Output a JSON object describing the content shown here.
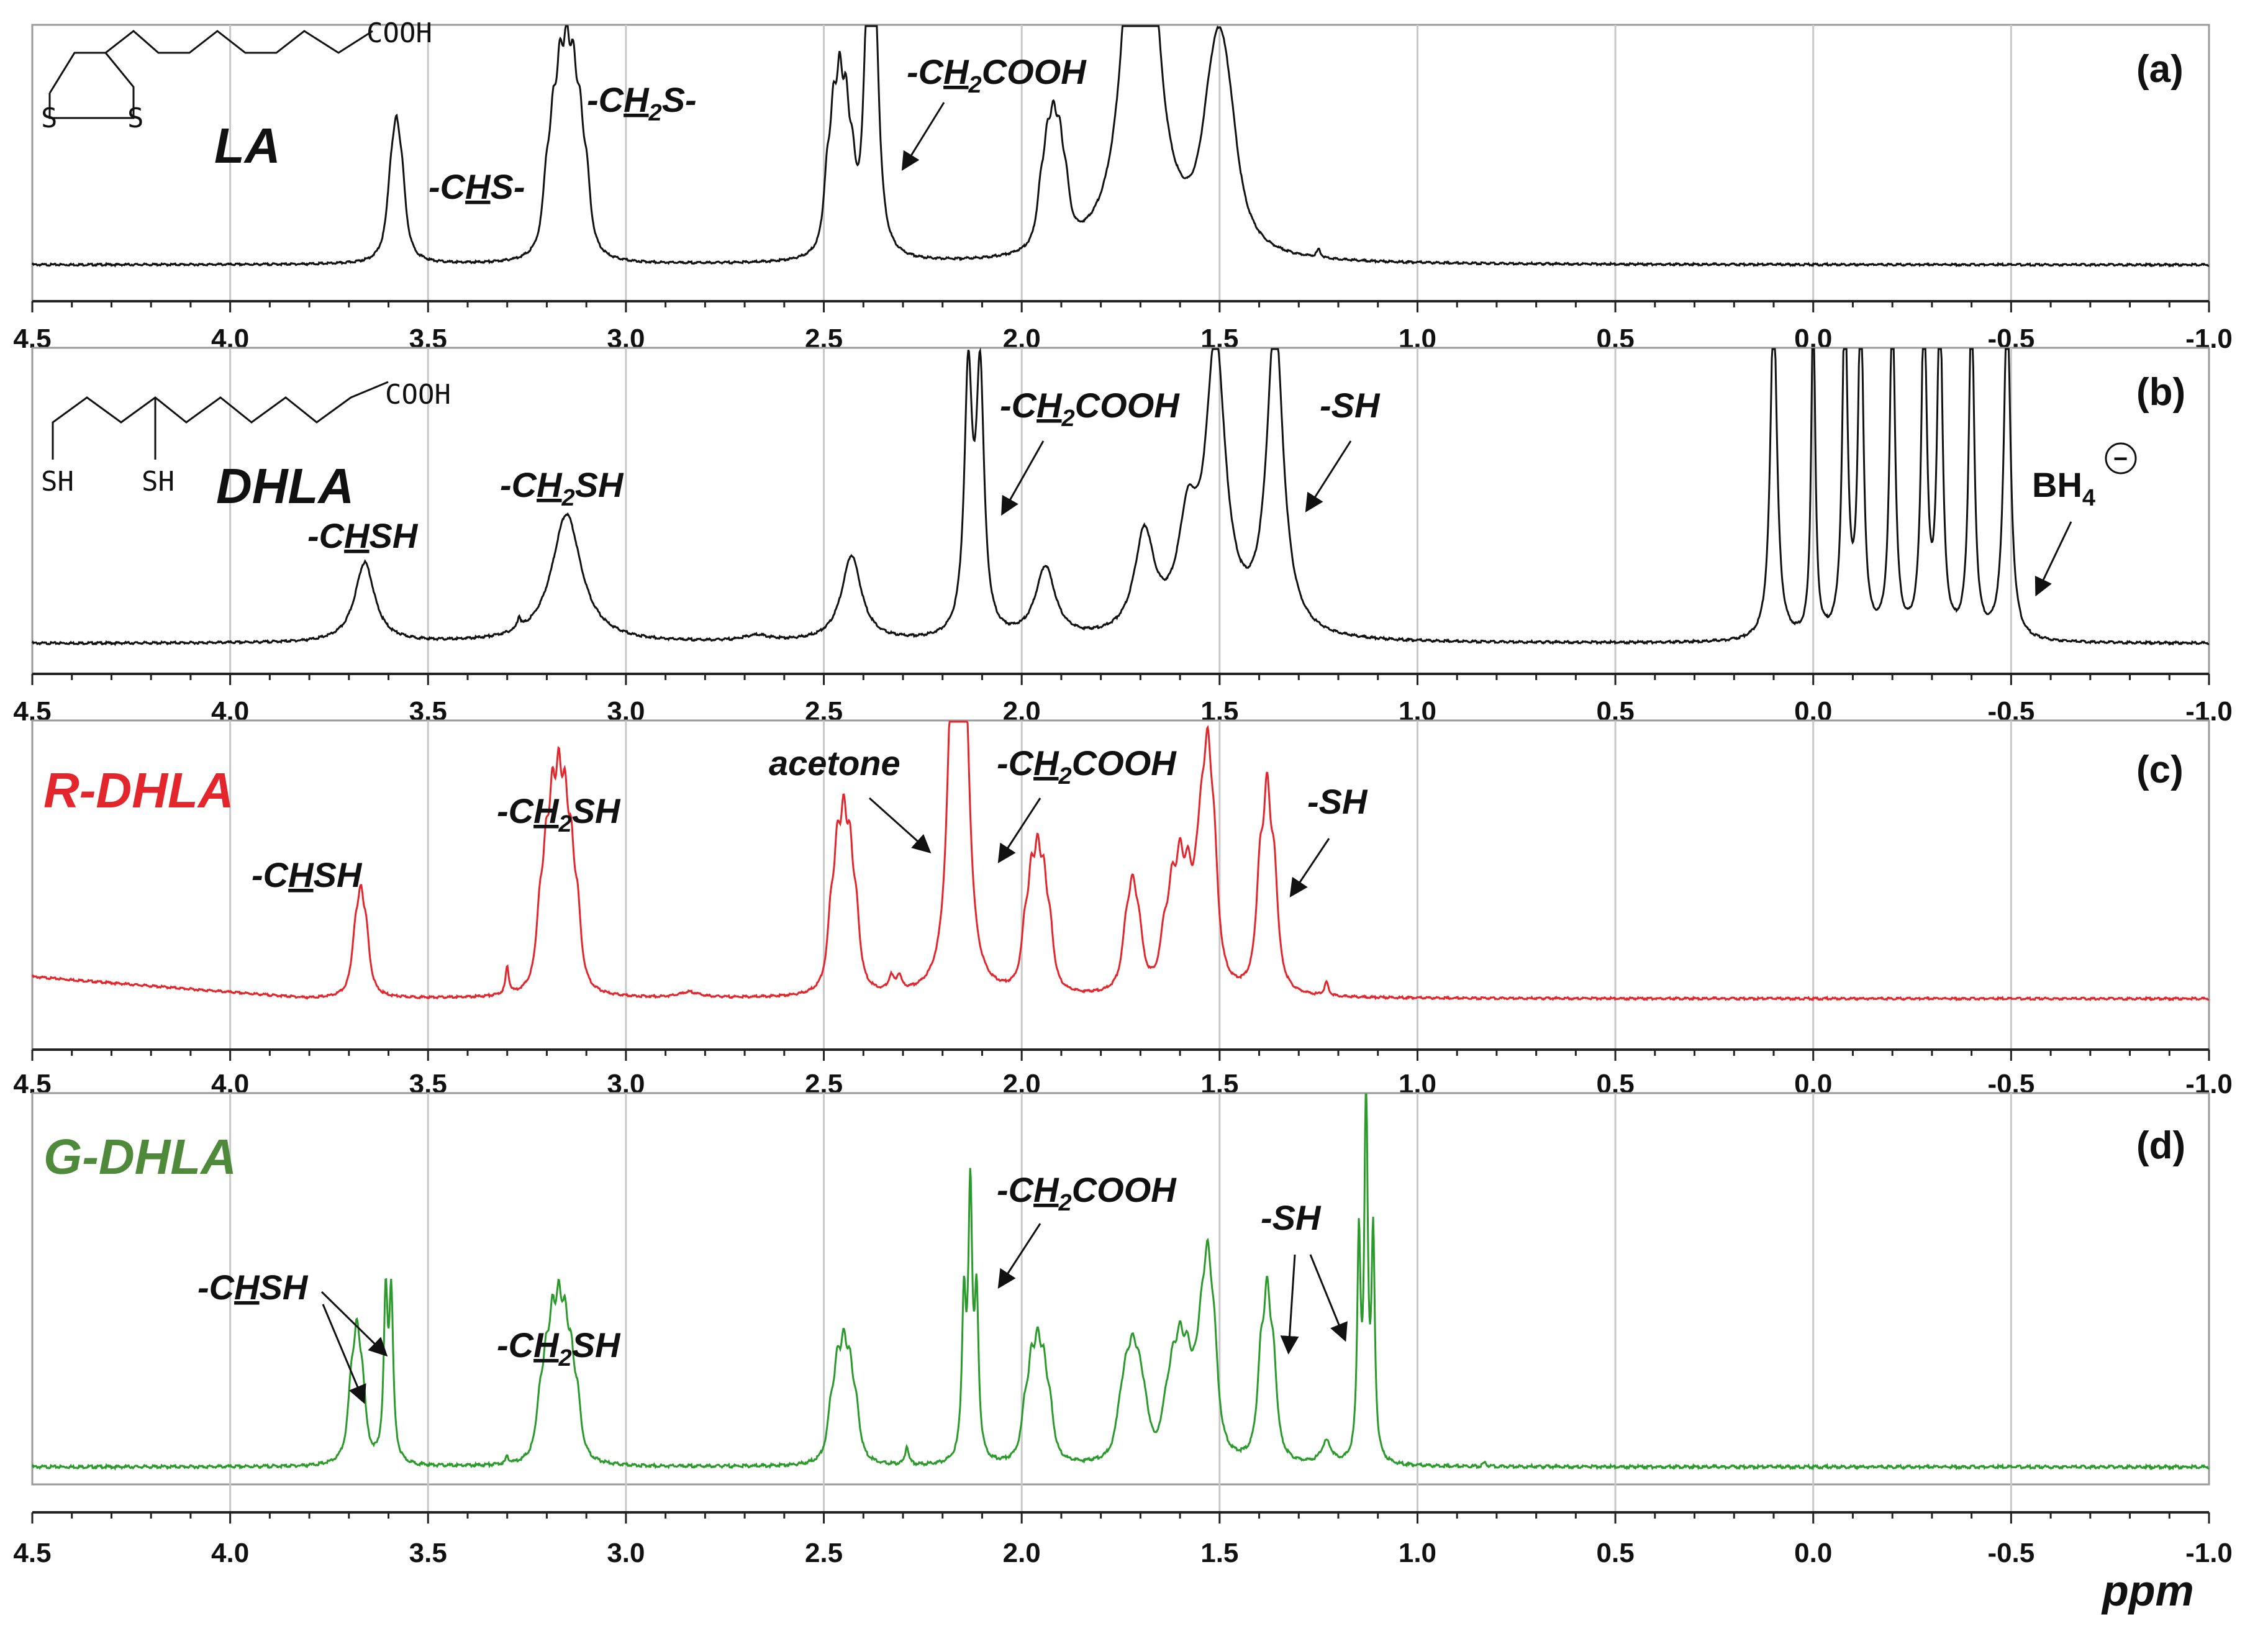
{
  "chart_data": {
    "type": "line",
    "xlabel": "ppm",
    "xlim": [
      4.5,
      -1.0
    ],
    "xticks": [
      "4.5",
      "4.0",
      "3.5",
      "3.0",
      "2.5",
      "2.0",
      "1.5",
      "1.0",
      "0.5",
      "0.0",
      "-0.5",
      "-1.0"
    ],
    "panels": [
      {
        "id": "a",
        "letter": "(a)",
        "title": "LA",
        "title_color": "#111111",
        "color": "#111111",
        "structure": {
          "top": "COOH",
          "left_atom": "S",
          "right_atom": "S"
        },
        "baseline": 0.02,
        "peaks": [
          {
            "center": 3.58,
            "height": 0.38,
            "width": 0.012,
            "multiplet": 3,
            "spacing": 0.014
          },
          {
            "center": 3.15,
            "height": 0.55,
            "width": 0.011,
            "multiplet": 7,
            "spacing": 0.017
          },
          {
            "center": 2.46,
            "height": 0.5,
            "width": 0.01,
            "multiplet": 5,
            "spacing": 0.016
          },
          {
            "center": 2.38,
            "height": 1.1,
            "width": 0.012,
            "multiplet": 2,
            "spacing": 0.02
          },
          {
            "center": 1.92,
            "height": 0.35,
            "width": 0.011,
            "multiplet": 5,
            "spacing": 0.016
          },
          {
            "center": 1.7,
            "height": 1.05,
            "width": 0.035,
            "multiplet": 3,
            "spacing": 0.015
          },
          {
            "center": 1.5,
            "height": 0.5,
            "width": 0.03,
            "multiplet": 3,
            "spacing": 0.025
          },
          {
            "center": 1.25,
            "height": 0.03,
            "width": 0.006,
            "multiplet": 1,
            "spacing": 0
          }
        ],
        "annotations": [
          {
            "text": "-CHS-",
            "x": 3.25,
            "y": 0.62
          },
          {
            "text": "-CH2S-",
            "x": 2.95,
            "y": 1.1
          },
          {
            "text": "-CH2COOH",
            "x": 2.05,
            "y": 1.25
          }
        ]
      },
      {
        "id": "b",
        "letter": "(b)",
        "title": "DHLA",
        "title_color": "#111111",
        "color": "#111111",
        "structure": {
          "top": "COOH",
          "left_atom": "SH",
          "right_atom": "SH"
        },
        "baseline": 0.03,
        "peaks": [
          {
            "center": 3.66,
            "height": 0.28,
            "width": 0.03,
            "multiplet": 1,
            "spacing": 0
          },
          {
            "center": 3.27,
            "height": 0.04,
            "width": 0.005,
            "multiplet": 1,
            "spacing": 0
          },
          {
            "center": 3.15,
            "height": 0.45,
            "width": 0.045,
            "multiplet": 1,
            "spacing": 0
          },
          {
            "center": 2.67,
            "height": 0.02,
            "width": 0.04,
            "multiplet": 1,
            "spacing": 0
          },
          {
            "center": 2.43,
            "height": 0.3,
            "width": 0.03,
            "multiplet": 1,
            "spacing": 0
          },
          {
            "center": 2.12,
            "height": 1.2,
            "width": 0.012,
            "multiplet": 2,
            "spacing": 0.03
          },
          {
            "center": 1.94,
            "height": 0.25,
            "width": 0.03,
            "multiplet": 1,
            "spacing": 0
          },
          {
            "center": 1.69,
            "height": 0.35,
            "width": 0.03,
            "multiplet": 1,
            "spacing": 0
          },
          {
            "center": 1.58,
            "height": 0.35,
            "width": 0.03,
            "multiplet": 1,
            "spacing": 0
          },
          {
            "center": 1.51,
            "height": 1.0,
            "width": 0.03,
            "multiplet": 1,
            "spacing": 0
          },
          {
            "center": 1.36,
            "height": 1.1,
            "width": 0.025,
            "multiplet": 1,
            "spacing": 0
          },
          {
            "center": 0.1,
            "height": 1.2,
            "width": 0.01,
            "multiplet": 1,
            "spacing": 0
          },
          {
            "center": 0.0,
            "height": 1.2,
            "width": 0.006,
            "multiplet": 1,
            "spacing": 0
          },
          {
            "center": -0.08,
            "height": 1.2,
            "width": 0.008,
            "multiplet": 1,
            "spacing": 0
          },
          {
            "center": -0.12,
            "height": 1.2,
            "width": 0.008,
            "multiplet": 1,
            "spacing": 0
          },
          {
            "center": -0.2,
            "height": 1.2,
            "width": 0.008,
            "multiplet": 1,
            "spacing": 0
          },
          {
            "center": -0.28,
            "height": 1.2,
            "width": 0.008,
            "multiplet": 1,
            "spacing": 0
          },
          {
            "center": -0.32,
            "height": 1.2,
            "width": 0.008,
            "multiplet": 1,
            "spacing": 0
          },
          {
            "center": -0.4,
            "height": 1.2,
            "width": 0.008,
            "multiplet": 1,
            "spacing": 0
          },
          {
            "center": -0.49,
            "height": 1.2,
            "width": 0.01,
            "multiplet": 1,
            "spacing": 0
          }
        ],
        "annotations": [
          {
            "text": "-CHSH",
            "x": 3.68,
            "y": 0.62
          },
          {
            "text": "-CH2SH",
            "x": 3.19,
            "y": 0.82
          },
          {
            "text": "-CH2COOH",
            "x": 1.85,
            "y": 1.3
          },
          {
            "text": "-SH",
            "x": 1.18,
            "y": 1.3
          },
          {
            "text": "BH4",
            "x": -0.42,
            "y": 0.82
          }
        ],
        "bh4_charge": "−"
      },
      {
        "id": "c",
        "letter": "(c)",
        "title": "R-DHLA",
        "title_color": "#e3262c",
        "color": "#e3262c",
        "baseline": 0.05,
        "baseline_tilt": 0.08,
        "peaks": [
          {
            "center": 3.67,
            "height": 0.3,
            "width": 0.01,
            "multiplet": 3,
            "spacing": 0.014
          },
          {
            "center": 3.3,
            "height": 0.1,
            "width": 0.005,
            "multiplet": 1,
            "spacing": 0
          },
          {
            "center": 3.17,
            "height": 0.55,
            "width": 0.01,
            "multiplet": 7,
            "spacing": 0.016
          },
          {
            "center": 2.84,
            "height": 0.02,
            "width": 0.03,
            "multiplet": 1,
            "spacing": 0
          },
          {
            "center": 2.45,
            "height": 0.48,
            "width": 0.01,
            "multiplet": 5,
            "spacing": 0.016
          },
          {
            "center": 2.32,
            "height": 0.07,
            "width": 0.008,
            "multiplet": 2,
            "spacing": 0.02
          },
          {
            "center": 2.16,
            "height": 1.2,
            "width": 0.014,
            "multiplet": 3,
            "spacing": 0.018
          },
          {
            "center": 1.96,
            "height": 0.38,
            "width": 0.01,
            "multiplet": 5,
            "spacing": 0.016
          },
          {
            "center": 1.72,
            "height": 0.3,
            "width": 0.012,
            "multiplet": 3,
            "spacing": 0.016
          },
          {
            "center": 1.6,
            "height": 0.35,
            "width": 0.012,
            "multiplet": 5,
            "spacing": 0.02
          },
          {
            "center": 1.53,
            "height": 0.65,
            "width": 0.012,
            "multiplet": 3,
            "spacing": 0.016
          },
          {
            "center": 1.38,
            "height": 0.62,
            "width": 0.011,
            "multiplet": 3,
            "spacing": 0.018
          },
          {
            "center": 1.23,
            "height": 0.05,
            "width": 0.006,
            "multiplet": 1,
            "spacing": 0
          }
        ],
        "annotations": [
          {
            "text": "-CHSH",
            "x": 3.75,
            "y": 0.42
          },
          {
            "text": "-CH2SH",
            "x": 3.17,
            "y": 0.6
          },
          {
            "text": "acetone",
            "x": 2.58,
            "y": 0.88
          },
          {
            "text": "-CH2COOH",
            "x": 1.85,
            "y": 0.88
          },
          {
            "text": "-SH",
            "x": 1.18,
            "y": 0.64
          }
        ]
      },
      {
        "id": "d",
        "letter": "(d)",
        "title": "G-DHLA",
        "title_color": "#4e8a3a",
        "color": "#2a9a2a",
        "baseline": 0.03,
        "peaks": [
          {
            "center": 3.68,
            "height": 0.28,
            "width": 0.01,
            "multiplet": 3,
            "spacing": 0.014
          },
          {
            "center": 3.6,
            "height": 0.58,
            "width": 0.006,
            "multiplet": 2,
            "spacing": 0.014
          },
          {
            "center": 3.3,
            "height": 0.02,
            "width": 0.004,
            "multiplet": 1,
            "spacing": 0
          },
          {
            "center": 3.17,
            "height": 0.3,
            "width": 0.01,
            "multiplet": 7,
            "spacing": 0.016
          },
          {
            "center": 2.45,
            "height": 0.24,
            "width": 0.01,
            "multiplet": 5,
            "spacing": 0.016
          },
          {
            "center": 2.29,
            "height": 0.05,
            "width": 0.005,
            "multiplet": 1,
            "spacing": 0
          },
          {
            "center": 2.13,
            "height": 0.7,
            "width": 0.006,
            "multiplet": 3,
            "spacing": 0.016
          },
          {
            "center": 1.96,
            "height": 0.24,
            "width": 0.01,
            "multiplet": 5,
            "spacing": 0.016
          },
          {
            "center": 1.72,
            "height": 0.2,
            "width": 0.012,
            "multiplet": 5,
            "spacing": 0.016
          },
          {
            "center": 1.6,
            "height": 0.22,
            "width": 0.012,
            "multiplet": 5,
            "spacing": 0.018
          },
          {
            "center": 1.53,
            "height": 0.4,
            "width": 0.012,
            "multiplet": 3,
            "spacing": 0.016
          },
          {
            "center": 1.38,
            "height": 0.38,
            "width": 0.01,
            "multiplet": 3,
            "spacing": 0.016
          },
          {
            "center": 1.23,
            "height": 0.06,
            "width": 0.015,
            "multiplet": 1,
            "spacing": 0
          },
          {
            "center": 1.13,
            "height": 1.0,
            "width": 0.005,
            "multiplet": 3,
            "spacing": 0.018
          },
          {
            "center": 0.83,
            "height": 0.01,
            "width": 0.005,
            "multiplet": 1,
            "spacing": 0
          }
        ],
        "annotations": [
          {
            "text": "-CHSH",
            "x": 3.9,
            "y": 0.58
          },
          {
            "text": "-CH2SH",
            "x": 3.17,
            "y": 0.4
          },
          {
            "text": "-CH2COOH",
            "x": 1.85,
            "y": 0.83
          },
          {
            "text": "-SH",
            "x": 1.33,
            "y": 0.75
          }
        ]
      }
    ]
  }
}
